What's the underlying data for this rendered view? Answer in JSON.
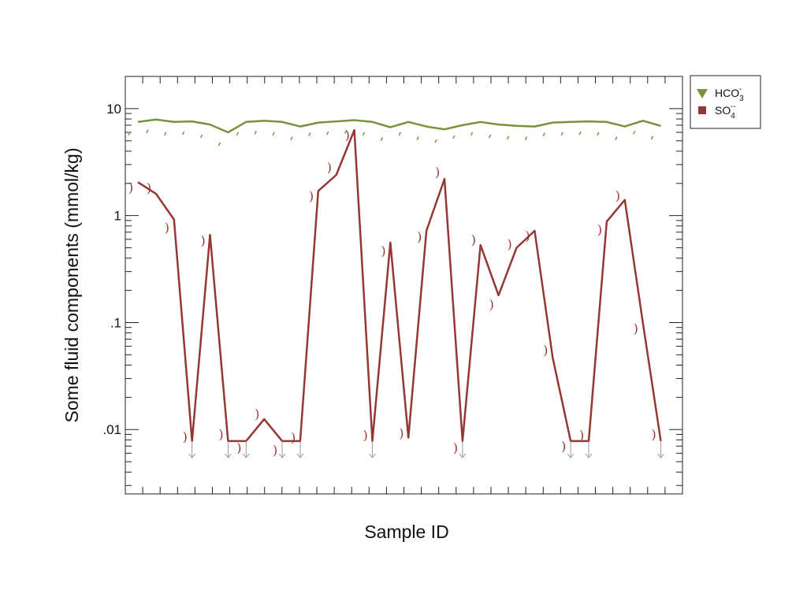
{
  "chart_data": {
    "type": "line",
    "title": "",
    "xlabel": "Sample ID",
    "ylabel": "Some fluid components (mmol/kg)",
    "y_scale": "log",
    "ylim": [
      0.0025,
      20
    ],
    "y_ticks": [
      {
        "value": 10,
        "label": "10"
      },
      {
        "value": 1,
        "label": "1"
      },
      {
        "value": 0.1,
        "label": ".1"
      },
      {
        "value": 0.01,
        "label": ".01"
      }
    ],
    "x": [
      1,
      2,
      3,
      4,
      5,
      6,
      7,
      8,
      9,
      10,
      11,
      12,
      13,
      14,
      15,
      16,
      17,
      18,
      19,
      20,
      21,
      22,
      23,
      24,
      25,
      26,
      27,
      28,
      29,
      30
    ],
    "x_range": [
      0.3,
      31.2
    ],
    "x_tick_count": 32,
    "grid": false,
    "legend_position": "outside-top-right",
    "series": [
      {
        "name": "HCO3-",
        "legend_main": "HCO",
        "legend_sub": "3",
        "legend_sup": "-",
        "color": "#77933c",
        "marker": "triangle-down",
        "values": [
          7.5,
          7.9,
          7.5,
          7.6,
          7.1,
          6.0,
          7.5,
          7.7,
          7.5,
          6.8,
          7.4,
          7.6,
          7.8,
          7.5,
          6.7,
          7.5,
          6.8,
          6.4,
          7.0,
          7.5,
          7.1,
          6.9,
          6.8,
          7.4,
          7.5,
          7.6,
          7.5,
          6.8,
          7.7,
          6.9
        ]
      },
      {
        "name": "SO4--",
        "legend_main": "SO",
        "legend_sub": "4",
        "legend_sup": "--",
        "color": "#953735",
        "marker": "square",
        "values": [
          2.05,
          1.6,
          0.92,
          0.0078,
          0.66,
          0.0078,
          0.0078,
          0.0125,
          0.0078,
          0.0078,
          1.7,
          2.4,
          6.3,
          0.0078,
          0.56,
          0.0084,
          0.72,
          2.2,
          0.0078,
          0.53,
          0.18,
          0.5,
          0.72,
          0.047,
          0.0078,
          0.0078,
          0.88,
          1.4,
          0.1,
          0.0078
        ],
        "below_detection_limit": [
          4,
          6,
          7,
          9,
          10,
          14,
          19,
          25,
          26,
          30
        ]
      }
    ]
  }
}
